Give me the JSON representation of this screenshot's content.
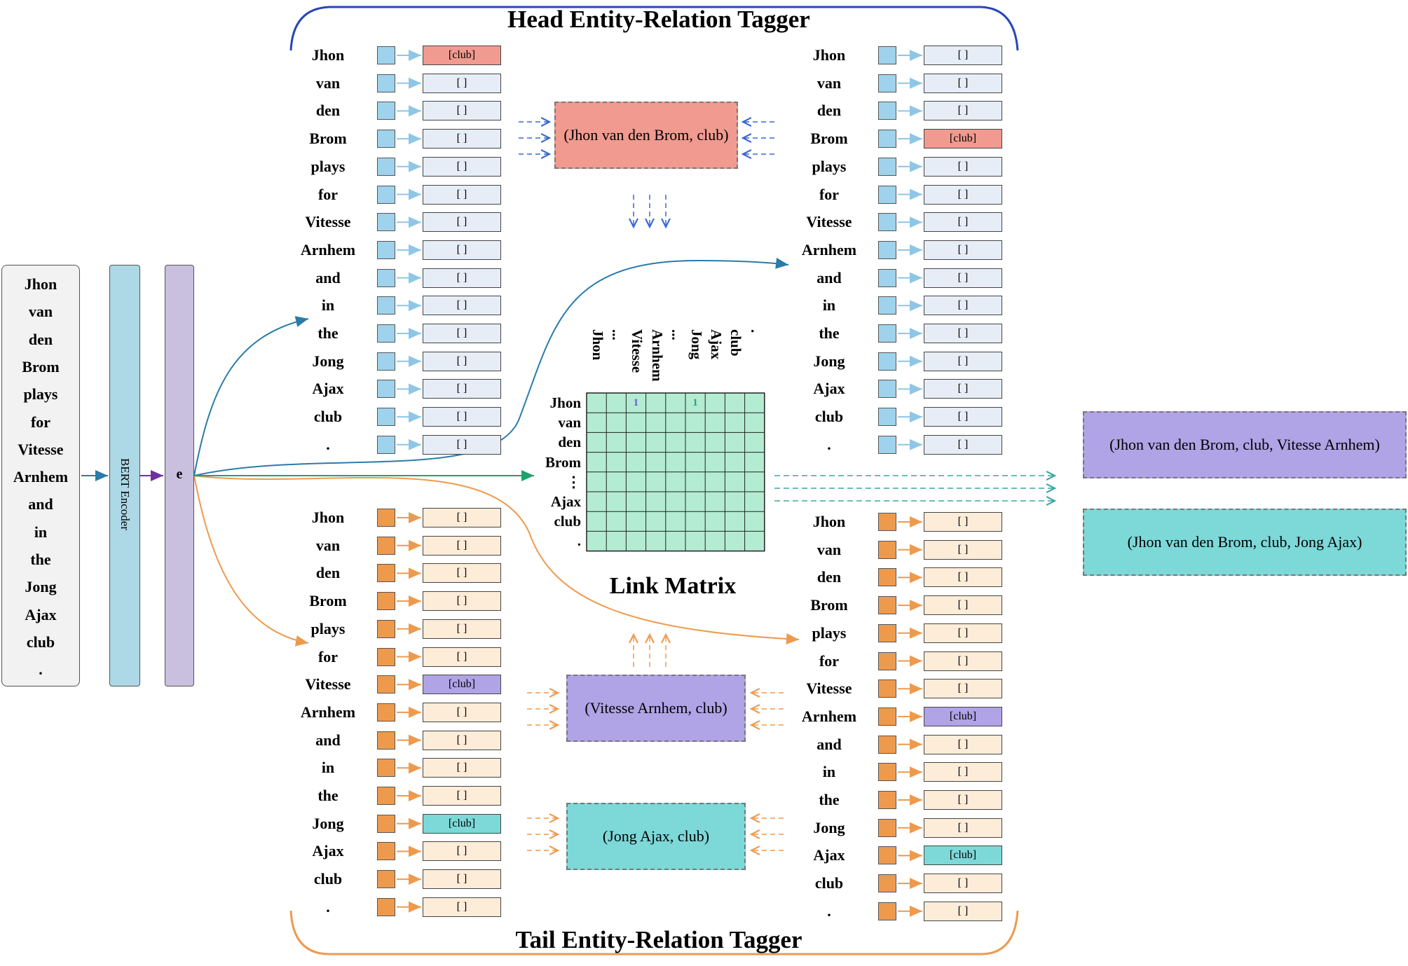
{
  "head_title": "Head Entity-Relation Tagger",
  "tail_title": "Tail Entity-Relation Tagger",
  "tokens": [
    "Jhon",
    "van",
    "den",
    "Brom",
    "plays",
    "for",
    "Vitesse",
    "Arnhem",
    "and",
    "in",
    "the",
    "Jong",
    "Ajax",
    "club",
    "."
  ],
  "encoder_label": "BERT Encoder",
  "embedding_label": "e",
  "empty_tag": "[ ]",
  "club_tag": "[club]",
  "head_left_tags": {
    "0": "[club]"
  },
  "head_right_tags": {
    "3": "[club]"
  },
  "tail_left_tags": {
    "6": "[club]",
    "11": "[club]"
  },
  "tail_right_tags": {
    "7": "[club]",
    "12": "[club]"
  },
  "head_pair": "(Jhon van den Brom, club)",
  "tail_pair_1": "(Vitesse Arnhem, club)",
  "tail_pair_2": "(Jong Ajax, club)",
  "link_matrix": {
    "title": "Link Matrix",
    "col_labels": [
      "Jhon",
      "...",
      "Vitesse",
      "Arnhem",
      "...",
      "Jong",
      "Ajax",
      "club",
      "."
    ],
    "row_labels": [
      "Jhon",
      "van",
      "den",
      "Brom",
      "⋮",
      "Ajax",
      "club",
      "."
    ],
    "marked": [
      {
        "row": 0,
        "col": 2,
        "value": "1"
      },
      {
        "row": 0,
        "col": 5,
        "value": "1"
      }
    ]
  },
  "triple_1": "(Jhon van den Brom, club, Vitesse Arnhem)",
  "triple_2": "(Jhon van den Brom, club, Jong Ajax)",
  "colors": {
    "blue_square": "#9fd2ec",
    "orange_square": "#ee9a4d",
    "pink": "#f19a8f",
    "purple": "#b0a3e6",
    "teal": "#7dd8d8",
    "matrix": "#b3ecd2",
    "encoder": "#add8e6",
    "embedding": "#c9bfde"
  }
}
